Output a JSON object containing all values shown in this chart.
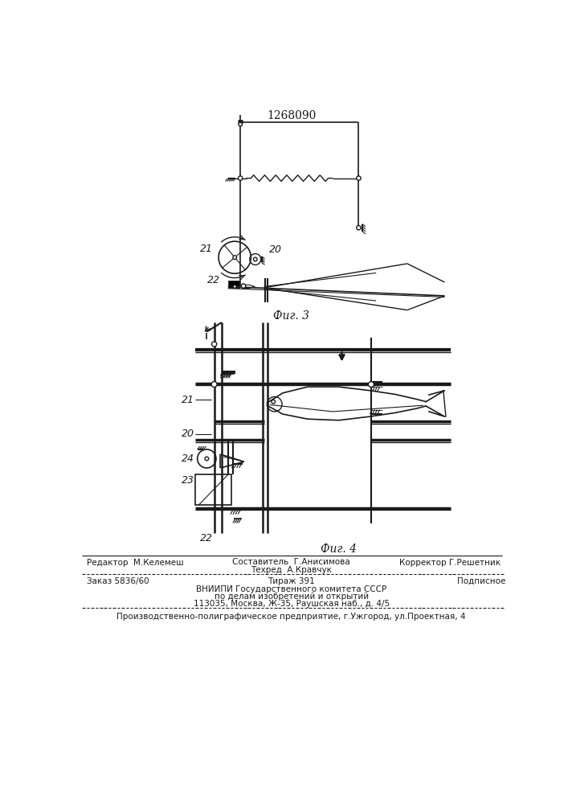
{
  "title_number": "1268090",
  "fig3_label": "Фиг. 3",
  "fig4_label": "Фиг. 4",
  "bg_color": "#ffffff",
  "line_color": "#1a1a1a",
  "label_21_fig3": "21",
  "label_22_fig3": "22",
  "label_20_fig3": "20",
  "label_21_fig4": "21",
  "label_20_fig4": "20",
  "label_22_fig4": "22",
  "label_23_fig4": "23",
  "label_24_fig4": "24",
  "footer_line1_left": "Редактор  М.Келемеш",
  "footer_line1_center": "Составитель  Г.Анисимова",
  "footer_line1_right": "Корректор Г.Решетник",
  "footer_line2_center": "Техред  А.Кравчук",
  "footer_zakaz": "Заказ 5836/60",
  "footer_tirazh": "Тираж 391",
  "footer_podpisnoe": "Подписное",
  "footer_vniiipi": "ВНИИПИ Государственного комитета СССР",
  "footer_po_delam": "по делам изобретений и открытий",
  "footer_address": "113035, Москва, Ж-35, Раушская наб., д. 4/5",
  "footer_proizv": "Производственно-полиграфическое предприятие, г.Ужгород, ул.Проектная, 4"
}
